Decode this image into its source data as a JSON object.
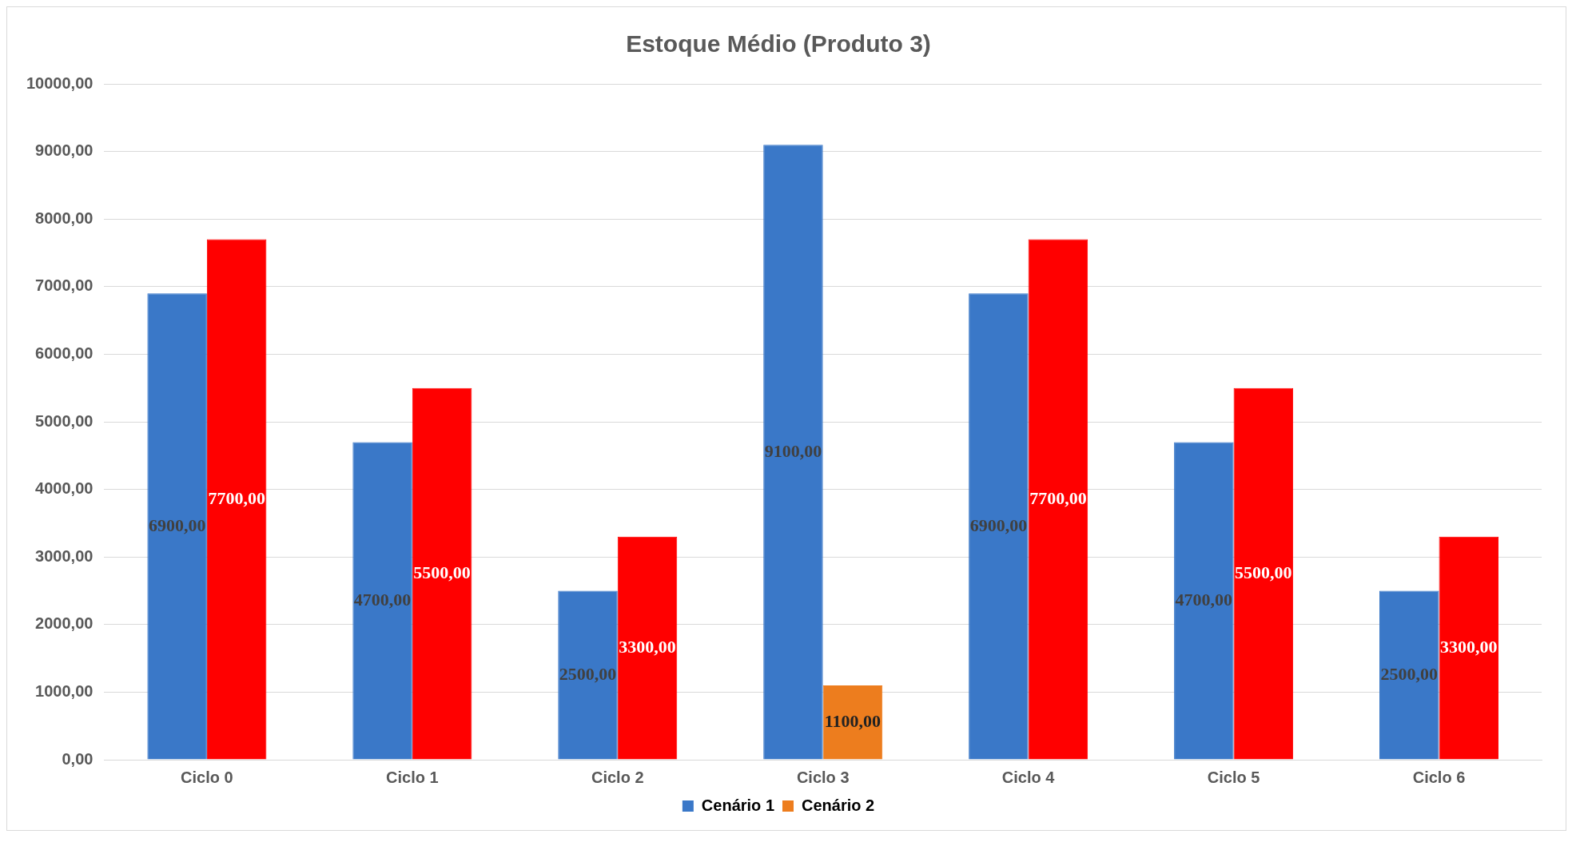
{
  "chart_data": {
    "type": "bar",
    "title": "Estoque Médio (Produto 3)",
    "categories": [
      "Ciclo 0",
      "Ciclo 1",
      "Ciclo 2",
      "Ciclo 3",
      "Ciclo 4",
      "Ciclo 5",
      "Ciclo 6"
    ],
    "series": [
      {
        "name": "Cenário 1",
        "color": "#3a78c8",
        "values": [
          6900,
          4700,
          2500,
          9100,
          6900,
          4700,
          2500
        ],
        "value_labels": [
          "6900,00",
          "4700,00",
          "2500,00",
          "9100,00",
          "6900,00",
          "4700,00",
          "2500,00"
        ]
      },
      {
        "name": "Cenário 2",
        "color": "#ed7d1e",
        "colors": [
          "#ff0000",
          "#ff0000",
          "#ff0000",
          "#ed7d1e",
          "#ff0000",
          "#ff0000",
          "#ff0000"
        ],
        "values": [
          7700,
          5500,
          3300,
          1100,
          7700,
          5500,
          3300
        ],
        "value_labels": [
          "7700,00",
          "5500,00",
          "3300,00",
          "1100,00",
          "7700,00",
          "5500,00",
          "3300,00"
        ]
      }
    ],
    "ylim": [
      0,
      10000
    ],
    "yticks": [
      {
        "value": 0,
        "label": "0,00"
      },
      {
        "value": 1000,
        "label": "1000,00"
      },
      {
        "value": 2000,
        "label": "2000,00"
      },
      {
        "value": 3000,
        "label": "3000,00"
      },
      {
        "value": 4000,
        "label": "4000,00"
      },
      {
        "value": 5000,
        "label": "5000,00"
      },
      {
        "value": 6000,
        "label": "6000,00"
      },
      {
        "value": 7000,
        "label": "7000,00"
      },
      {
        "value": 8000,
        "label": "8000,00"
      },
      {
        "value": 9000,
        "label": "9000,00"
      },
      {
        "value": 10000,
        "label": "10000,00"
      }
    ],
    "grid": "y",
    "legend": "bottom"
  }
}
